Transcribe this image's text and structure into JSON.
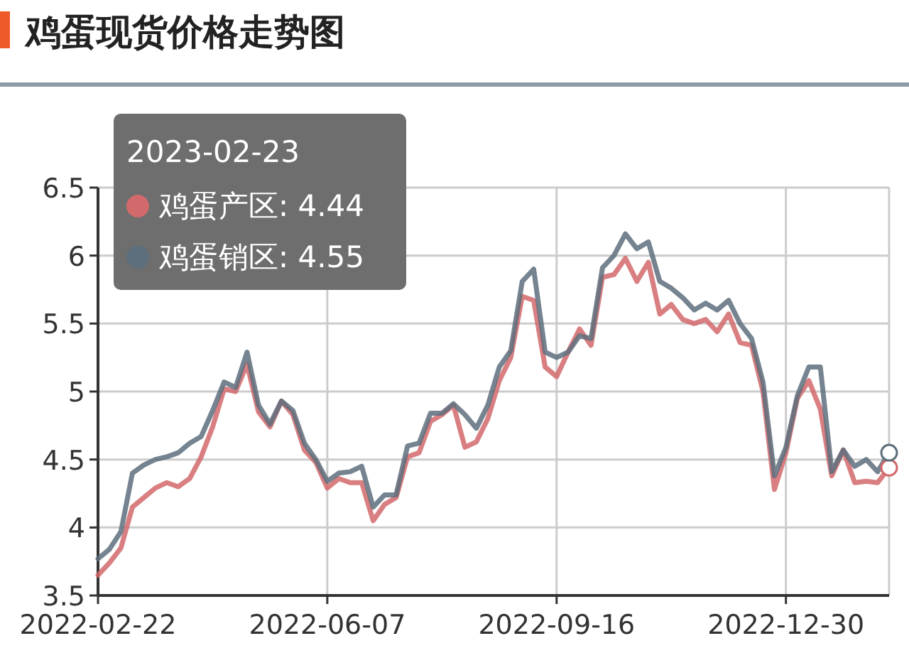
{
  "chart_data": {
    "type": "line",
    "title": "鸡蛋现货价格走势图",
    "categories": [
      "2022-02-22",
      null,
      null,
      null,
      null,
      null,
      null,
      null,
      null,
      null,
      null,
      null,
      null,
      null,
      null,
      null,
      null,
      null,
      null,
      null,
      "2022-06-07",
      null,
      null,
      null,
      null,
      null,
      null,
      null,
      null,
      null,
      null,
      null,
      null,
      null,
      null,
      null,
      null,
      null,
      null,
      null,
      "2022-09-16",
      null,
      null,
      null,
      null,
      null,
      null,
      null,
      null,
      null,
      null,
      null,
      null,
      null,
      null,
      null,
      null,
      null,
      null,
      null,
      "2022-12-30",
      null,
      null,
      null,
      null,
      null,
      null,
      null,
      null,
      null
    ],
    "ylim": [
      3.5,
      6.5
    ],
    "yticks": [
      3.5,
      4,
      4.5,
      5,
      5.5,
      6,
      6.5
    ],
    "grid": true,
    "marker": "none",
    "line_style": "solid",
    "annotations": [
      "2023-02-23"
    ],
    "series": [
      {
        "name": "鸡蛋产区:",
        "color": "#d2696b",
        "values": [
          3.65,
          3.74,
          3.85,
          4.15,
          4.22,
          4.29,
          4.33,
          4.3,
          4.36,
          4.52,
          4.74,
          5.02,
          5.0,
          5.2,
          4.85,
          4.74,
          4.93,
          4.83,
          4.57,
          4.48,
          4.29,
          4.36,
          4.33,
          4.33,
          4.05,
          4.17,
          4.22,
          4.52,
          4.55,
          4.78,
          4.83,
          4.9,
          4.59,
          4.63,
          4.8,
          5.08,
          5.25,
          5.7,
          5.67,
          5.18,
          5.11,
          5.29,
          5.46,
          5.34,
          5.84,
          5.86,
          5.98,
          5.81,
          5.95,
          5.57,
          5.64,
          5.53,
          5.5,
          5.53,
          5.44,
          5.57,
          5.36,
          5.34,
          5.0,
          4.28,
          4.55,
          4.95,
          5.08,
          4.87,
          4.38,
          4.57,
          4.33,
          4.34,
          4.33,
          4.44
        ],
        "value_labels": [
          null,
          null,
          null,
          null,
          null,
          null,
          null,
          null,
          null,
          null,
          null,
          null,
          null,
          null,
          null,
          null,
          null,
          null,
          null,
          null,
          null,
          null,
          null,
          null,
          null,
          null,
          null,
          null,
          null,
          null,
          null,
          null,
          null,
          null,
          null,
          null,
          null,
          null,
          null,
          null,
          null,
          null,
          null,
          null,
          null,
          null,
          null,
          null,
          null,
          null,
          null,
          null,
          null,
          null,
          null,
          null,
          null,
          null,
          null,
          null,
          null,
          null,
          null,
          null,
          null,
          null,
          null,
          null,
          null,
          "4.44"
        ]
      },
      {
        "name": "鸡蛋销区:",
        "color": "#5d6f7c",
        "values": [
          3.77,
          3.84,
          3.97,
          4.4,
          4.46,
          4.5,
          4.52,
          4.55,
          4.62,
          4.67,
          4.86,
          5.07,
          5.03,
          5.29,
          4.9,
          4.76,
          4.93,
          4.86,
          4.62,
          4.5,
          4.34,
          4.4,
          4.41,
          4.45,
          4.15,
          4.24,
          4.24,
          4.6,
          4.62,
          4.84,
          4.84,
          4.91,
          4.83,
          4.73,
          4.9,
          5.18,
          5.3,
          5.81,
          5.9,
          5.29,
          5.25,
          5.29,
          5.41,
          5.39,
          5.91,
          6.0,
          6.16,
          6.05,
          6.1,
          5.81,
          5.76,
          5.69,
          5.6,
          5.65,
          5.6,
          5.67,
          5.5,
          5.39,
          5.07,
          4.38,
          4.59,
          4.97,
          5.18,
          5.18,
          4.41,
          4.57,
          4.45,
          4.5,
          4.41,
          4.55
        ],
        "value_labels": [
          null,
          null,
          null,
          null,
          null,
          null,
          null,
          null,
          null,
          null,
          null,
          null,
          null,
          null,
          null,
          null,
          null,
          null,
          null,
          null,
          null,
          null,
          null,
          null,
          null,
          null,
          null,
          null,
          null,
          null,
          null,
          null,
          null,
          null,
          null,
          null,
          null,
          null,
          null,
          null,
          null,
          null,
          null,
          null,
          null,
          null,
          null,
          null,
          null,
          null,
          null,
          null,
          null,
          null,
          null,
          null,
          null,
          null,
          null,
          null,
          null,
          null,
          null,
          null,
          null,
          null,
          null,
          null,
          null,
          "4.55"
        ]
      }
    ]
  }
}
